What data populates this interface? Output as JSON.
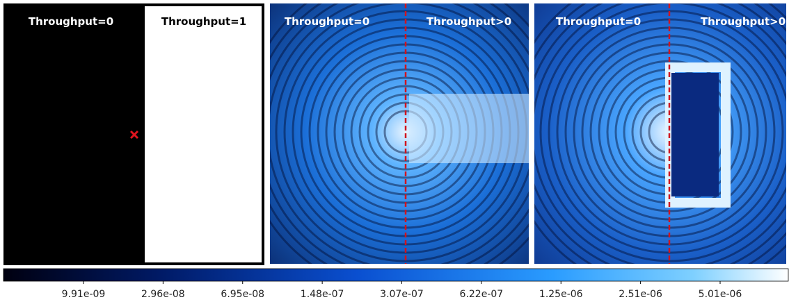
{
  "panels": [
    {
      "labels": [
        "Throughput=0",
        "Throughput=1"
      ]
    },
    {
      "labels": [
        "Throughput=0",
        "Throughput>0"
      ]
    },
    {
      "labels": [
        "Throughput=0",
        "Throughput>0"
      ]
    }
  ],
  "colorbar": {
    "ticks": [
      "9.91e-09",
      "2.96e-08",
      "6.95e-08",
      "1.48e-07",
      "3.07e-07",
      "6.22e-07",
      "1.25e-06",
      "2.51e-06",
      "5.01e-06"
    ]
  }
}
